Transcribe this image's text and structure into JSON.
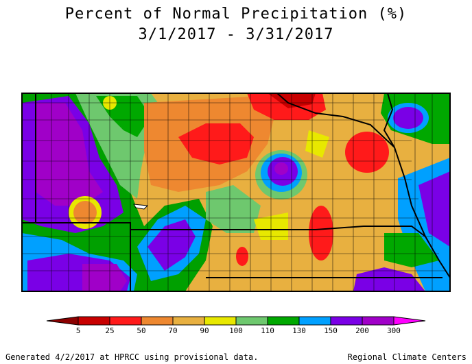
{
  "title": {
    "line1": "Percent of Normal Precipitation (%)",
    "line2": "3/1/2017 - 3/31/2017"
  },
  "legend": {
    "ticks": [
      "5",
      "25",
      "50",
      "70",
      "90",
      "100",
      "110",
      "130",
      "150",
      "200",
      "300"
    ],
    "colors": {
      "lt5": "#8b0000",
      "c5_25": "#c80000",
      "c25_50": "#ff1a1a",
      "c50_70": "#ee8830",
      "c70_90": "#e8b040",
      "c90_100": "#e8e800",
      "c100_110": "#6ec86e",
      "c110_130": "#00a800",
      "c130_150": "#00a0ff",
      "c150_200": "#7a00e6",
      "c200_300": "#a000c8",
      "gt300": "#ff00ff"
    }
  },
  "footer": {
    "left": "Generated 4/2/2017 at HPRCC using provisional data.",
    "right": "Regional Climate Centers"
  }
}
